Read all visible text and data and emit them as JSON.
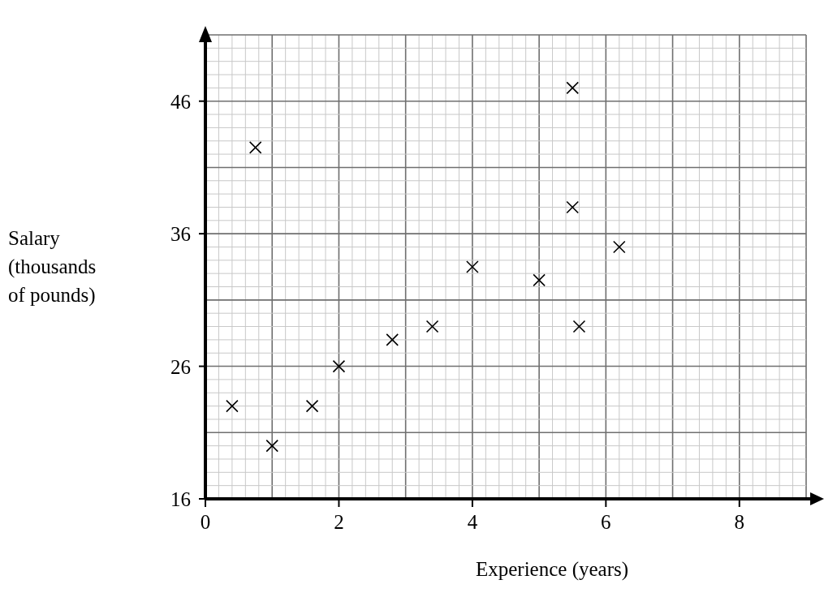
{
  "chart_data": {
    "type": "scatter",
    "xlabel": "Experience (years)",
    "ylabel": "Salary (thousands of pounds)",
    "x": [
      0.4,
      0.75,
      1,
      1.6,
      2,
      2.8,
      3.4,
      4,
      5,
      5.5,
      5.5,
      5.6,
      6.2
    ],
    "series": [
      {
        "color": "#000000",
        "values": [
          23,
          42.5,
          20,
          23,
          26,
          28,
          29,
          33.5,
          32.5,
          47,
          38,
          29,
          35
        ]
      }
    ],
    "xlim": [
      0,
      9
    ],
    "ylim": [
      16,
      51
    ],
    "xticks": [
      0,
      2,
      4,
      6,
      8
    ],
    "yticks": [
      16,
      26,
      36,
      46
    ],
    "grid": true,
    "marker": "cross"
  }
}
